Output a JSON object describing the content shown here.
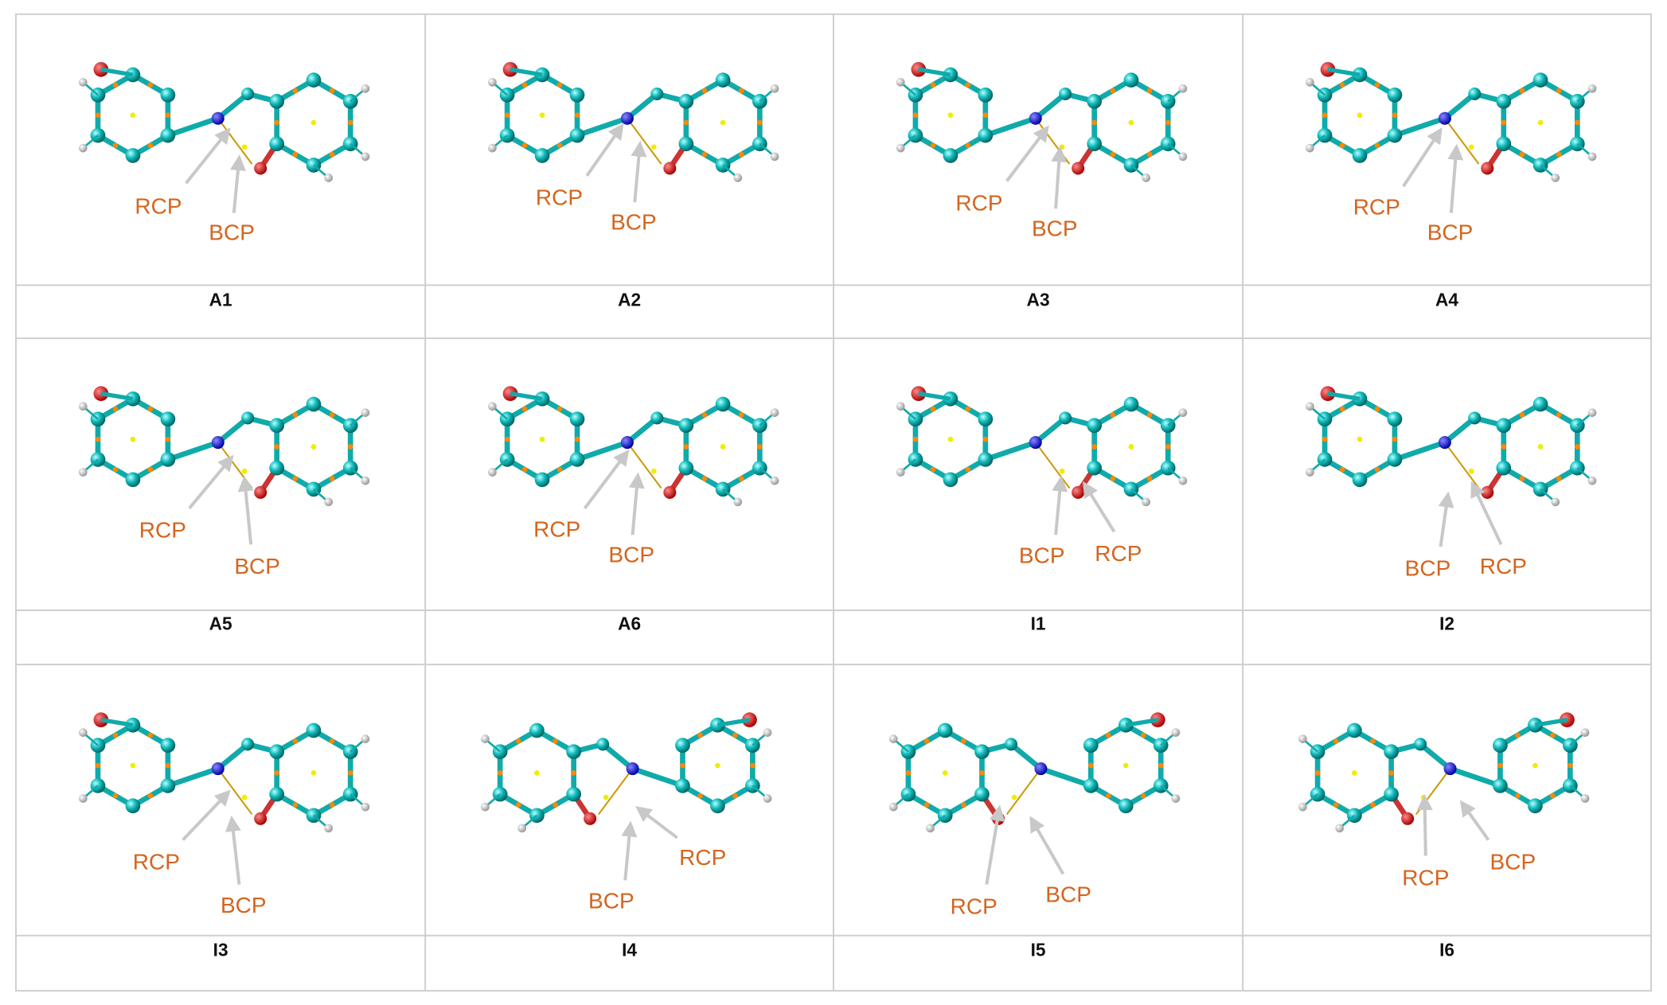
{
  "panels": [
    {
      "label": "A1",
      "annotations": [
        "RCP",
        "BCP"
      ]
    },
    {
      "label": "A2",
      "annotations": [
        "RCP",
        "BCP"
      ]
    },
    {
      "label": "A3",
      "annotations": [
        "RCP",
        "BCP"
      ]
    },
    {
      "label": "A4",
      "annotations": [
        "RCP",
        "BCP"
      ]
    },
    {
      "label": "A5",
      "annotations": [
        "RCP",
        "BCP"
      ]
    },
    {
      "label": "A6",
      "annotations": [
        "RCP",
        "BCP"
      ]
    },
    {
      "label": "I1",
      "annotations": [
        "BCP",
        "RCP"
      ]
    },
    {
      "label": "I2",
      "annotations": [
        "BCP",
        "RCP"
      ]
    },
    {
      "label": "I3",
      "annotations": [
        "RCP",
        "BCP"
      ]
    },
    {
      "label": "I4",
      "annotations": [
        "BCP",
        "RCP"
      ]
    },
    {
      "label": "I5",
      "annotations": [
        "RCP",
        "BCP"
      ]
    },
    {
      "label": "I6",
      "annotations": [
        "RCP",
        "BCP"
      ]
    }
  ]
}
